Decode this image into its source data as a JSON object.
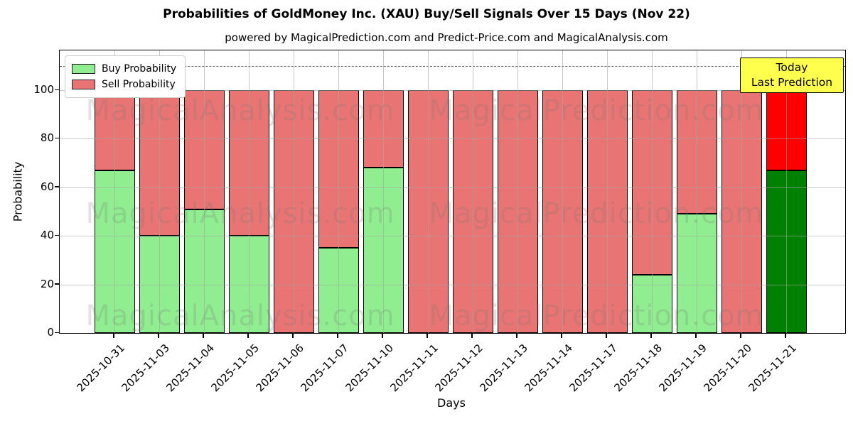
{
  "title": "Probabilities of GoldMoney Inc. (XAU) Buy/Sell Signals Over 15 Days (Nov 22)",
  "subtitle": "powered by MagicalPrediction.com and Predict-Price.com and MagicalAnalysis.com",
  "annotation": {
    "line1": "Today",
    "line2": "Last Prediction",
    "bg": "#ffff4d",
    "border": "#000000"
  },
  "watermarks": {
    "left": "MagicalAnalysis.com",
    "right": "MagicalPrediction.com"
  },
  "colors": {
    "buy": "#90ee90",
    "sell": "#e97474",
    "today_buy": "#008000",
    "today_sell": "#ff0000",
    "bar_edge": "#000000",
    "grid": "#a5a5a5",
    "dashed_line": "#666666"
  },
  "chart_data": {
    "type": "bar",
    "stacked": true,
    "title": "Probabilities of GoldMoney Inc. (XAU) Buy/Sell Signals Over 15 Days (Nov 22)",
    "xlabel": "Days",
    "ylabel": "Probability",
    "categories": [
      "2025-10-31",
      "2025-11-03",
      "2025-11-04",
      "2025-11-05",
      "2025-11-06",
      "2025-11-07",
      "2025-11-10",
      "2025-11-11",
      "2025-11-12",
      "2025-11-13",
      "2025-11-14",
      "2025-11-17",
      "2025-11-18",
      "2025-11-19",
      "2025-11-20",
      "2025-11-21"
    ],
    "series": [
      {
        "name": "Buy Probability",
        "color": "#90ee90",
        "values": [
          67,
          40,
          51,
          40,
          0,
          35,
          68,
          0,
          0,
          0,
          0,
          0,
          24,
          49,
          0,
          67
        ]
      },
      {
        "name": "Sell Probability",
        "color": "#e97474",
        "values": [
          33,
          60,
          49,
          60,
          100,
          65,
          32,
          100,
          100,
          100,
          100,
          100,
          76,
          51,
          100,
          33
        ]
      }
    ],
    "today_index": 15,
    "today_colors": {
      "buy": "#008000",
      "sell": "#ff0000"
    },
    "yticks": [
      0,
      20,
      40,
      60,
      80,
      100
    ],
    "ylim": [
      0,
      116
    ],
    "dashed_line_y": 110,
    "grid": true,
    "legend_position": "upper left"
  }
}
